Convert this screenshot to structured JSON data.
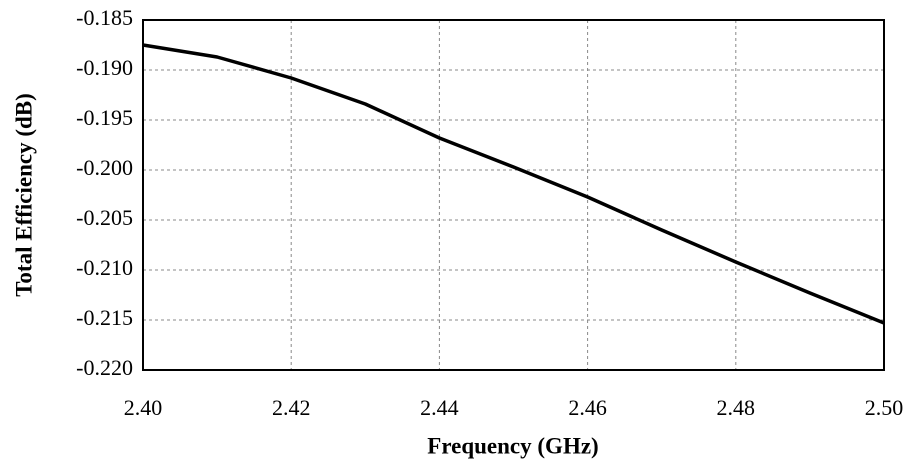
{
  "chart_data": {
    "type": "line",
    "xlabel": "Frequency (GHz)",
    "ylabel": "Total Efficiency (dB)",
    "x": [
      2.4,
      2.41,
      2.42,
      2.43,
      2.44,
      2.45,
      2.46,
      2.47,
      2.48,
      2.49,
      2.5
    ],
    "series": [
      {
        "color": "#000000",
        "values": [
          -0.1875,
          -0.1887,
          -0.1908,
          -0.1934,
          -0.1968,
          -0.1997,
          -0.2027,
          -0.206,
          -0.2092,
          -0.2123,
          -0.2153
        ]
      }
    ],
    "xlim": [
      2.4,
      2.5
    ],
    "xticks": [
      {
        "value": 2.4,
        "label": "2.40"
      },
      2.42,
      2.44,
      2.46,
      2.48,
      {
        "value": 2.5,
        "label": "2.50"
      }
    ],
    "ylim": [
      -0.22,
      -0.185
    ],
    "yticks": [
      {
        "value": -0.22,
        "label": "-0.220"
      },
      -0.215,
      {
        "value": -0.21,
        "label": "-0.210"
      },
      -0.205,
      {
        "value": -0.2,
        "label": "-0.200"
      },
      -0.195,
      {
        "value": -0.19,
        "label": "-0.190"
      },
      -0.185
    ],
    "grid": true
  }
}
